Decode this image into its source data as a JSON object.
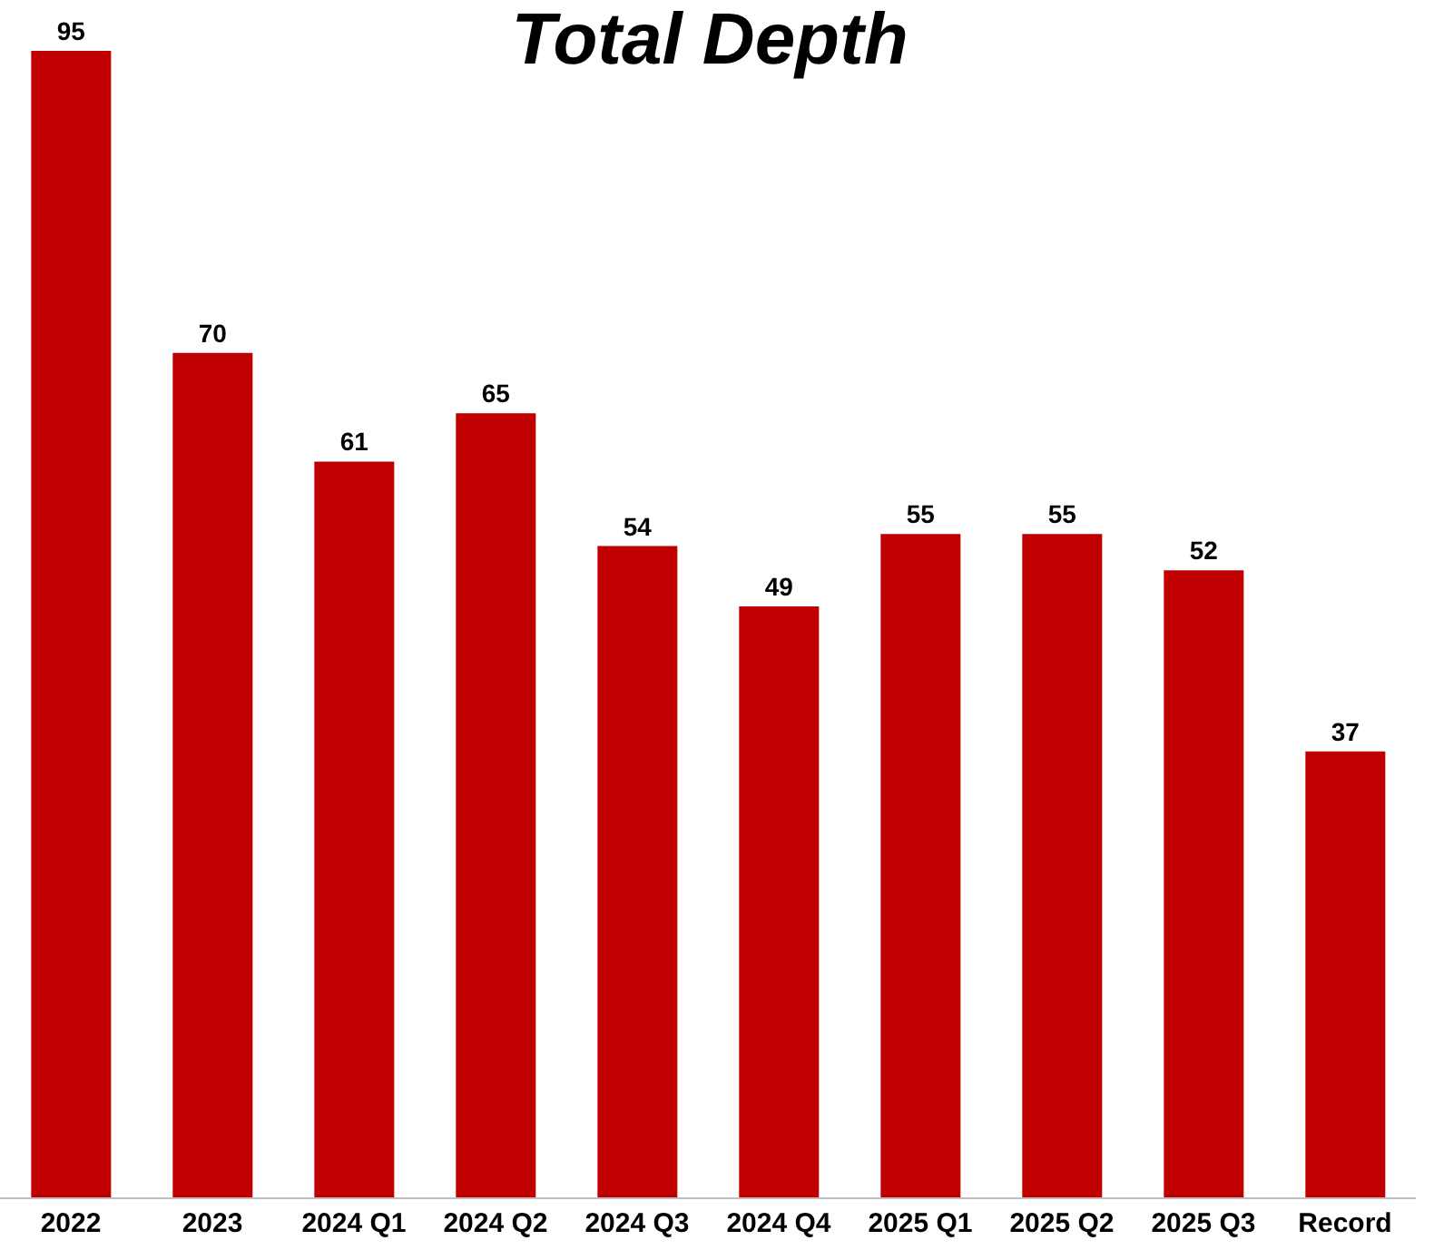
{
  "chart_data": {
    "type": "bar",
    "title": "Total Depth",
    "categories": [
      "2022",
      "2023",
      "2024 Q1",
      "2024 Q2",
      "2024 Q3",
      "2024 Q4",
      "2025 Q1",
      "2025 Q2",
      "2025 Q3",
      "Record"
    ],
    "values": [
      95,
      70,
      61,
      65,
      54,
      49,
      55,
      55,
      52,
      37
    ],
    "color": "#c00000",
    "data_labels": true
  }
}
